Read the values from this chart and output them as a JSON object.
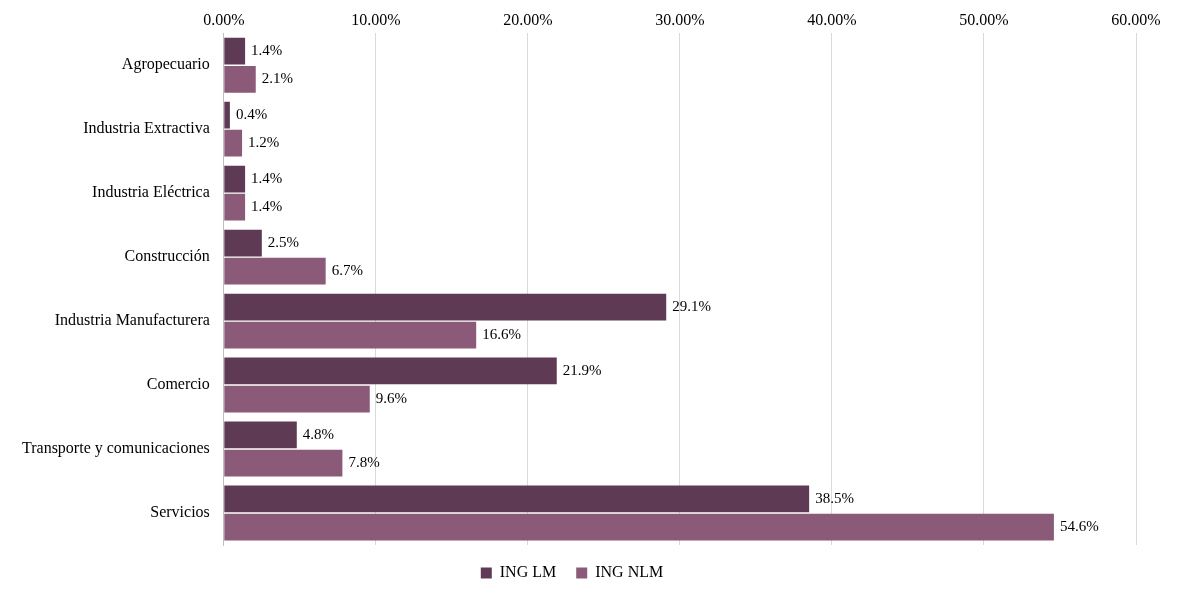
{
  "chart_data": {
    "type": "bar",
    "orientation": "horizontal",
    "categories": [
      "Agropecuario",
      "Industria Extractiva",
      "Industria Eléctrica",
      "Construcción",
      "Industria Manufacturera",
      "Comercio",
      "Transporte y comunicaciones",
      "Servicios"
    ],
    "series": [
      {
        "name": "ING LM",
        "color": "#5e3a54",
        "values": [
          1.4,
          0.4,
          1.4,
          2.5,
          29.1,
          21.9,
          4.8,
          38.5
        ],
        "value_labels": [
          "1.4%",
          "0.4%",
          "1.4%",
          "2.5%",
          "29.1%",
          "21.9%",
          "4.8%",
          "38.5%"
        ]
      },
      {
        "name": "ING NLM",
        "color": "#8a5a78",
        "values": [
          2.1,
          1.2,
          1.4,
          6.7,
          16.6,
          9.6,
          7.8,
          54.6
        ],
        "value_labels": [
          "2.1%",
          "1.2%",
          "1.4%",
          "6.7%",
          "16.6%",
          "9.6%",
          "7.8%",
          "54.6%"
        ]
      }
    ],
    "xlim": [
      0,
      60
    ],
    "xticks": [
      {
        "value": 0,
        "label": "0.00%"
      },
      {
        "value": 10,
        "label": "10.00%"
      },
      {
        "value": 20,
        "label": "20.00%"
      },
      {
        "value": 30,
        "label": "30.00%"
      },
      {
        "value": 40,
        "label": "40.00%"
      },
      {
        "value": 50,
        "label": "50.00%"
      },
      {
        "value": 60,
        "label": "60.00%"
      }
    ],
    "grid": "x",
    "legend": "bottom"
  }
}
